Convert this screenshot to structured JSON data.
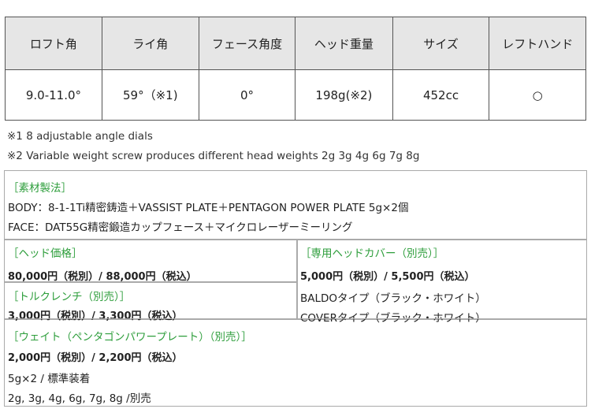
{
  "spec_table": {
    "headers": [
      "ロフト角",
      "ライ角",
      "フェース角度",
      "ヘッド重量",
      "サイズ",
      "レフトハンド"
    ],
    "values": [
      "9.0-11.0°",
      "59°（※1)",
      "0°",
      "198g(※2)",
      "452cc",
      "○"
    ]
  },
  "notes": [
    "※1  8 adjustable angle dials",
    "※2 Variable weight screw produces different head weights 2g 3g 4g 6g 7g 8g"
  ],
  "material": {
    "title": "［素材製法］",
    "body": "BODY：8-1-1Ti精密鋳造＋VASSIST PLATE＋PENTAGON POWER PLATE 5g×2個",
    "face": "FACE：DAT55G精密鍛造カップフェース＋マイクロレーザーミーリング"
  },
  "head_price": {
    "title": "［ヘッド価格］",
    "price": "80,000円（税別）/ 88,000円（税込）"
  },
  "wrench": {
    "title": "［トルクレンチ（別売）］",
    "price": "3,000円（税別）/ 3,300円（税込）"
  },
  "cover": {
    "title": "［専用ヘッドカバー（別売）］",
    "price": "5,000円（税別）/ 5,500円（税込）",
    "types": [
      "BALDOタイプ（ブラック・ホワイト）",
      "COVERタイプ（ブラック・ホワイト）"
    ]
  },
  "weight": {
    "title": "［ウェイト（ペンタゴンパワープレート）（別売）］",
    "price": "2,000円（税別）/ 2,200円（税込）",
    "standard": "5g×2 / 標準装着",
    "optional": "2g, 3g, 4g, 6g, 7g, 8g /別売"
  },
  "colors": {
    "accent": "#2e9e3c"
  }
}
